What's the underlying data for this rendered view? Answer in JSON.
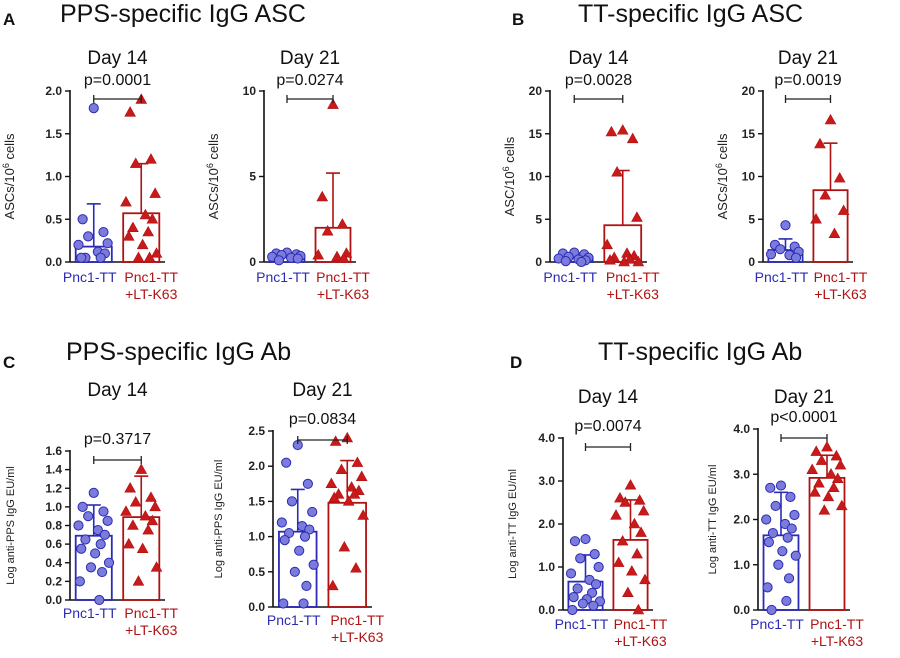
{
  "panels": [
    {
      "letter": "A",
      "title": "PPS-specific IgG ASC"
    },
    {
      "letter": "B",
      "title": "TT-specific IgG ASC"
    },
    {
      "letter": "C",
      "title": "PPS-specific IgG Ab"
    },
    {
      "letter": "D",
      "title": "TT-specific IgG Ab"
    }
  ],
  "group_labels": {
    "g1": "Pnc1-TT",
    "g2_line1": "Pnc1-TT",
    "g2_line2": "+LT-K63"
  },
  "colors": {
    "group1": "#2b2bb5",
    "group1_fill": "#7b7bdc",
    "group2": "#b01212",
    "group2_fill": "#c81a1a",
    "axis": "#111111"
  },
  "chart_data": [
    {
      "id": "A1",
      "type": "bar",
      "title": "Day 14",
      "ylabel": "ASCs/10^6 cells",
      "ylim": [
        0,
        2.0
      ],
      "yticks": [
        0.0,
        0.5,
        1.0,
        1.5,
        2.0
      ],
      "ytick_labels": [
        "0.0",
        "0.5",
        "1.0",
        "1.5",
        "2.0"
      ],
      "pvalue": "p=0.0001",
      "series": [
        {
          "name": "Pnc1-TT",
          "mean": 0.18,
          "sd": 0.5,
          "points": [
            1.8,
            0.5,
            0.35,
            0.3,
            0.22,
            0.2,
            0.12,
            0.1,
            0.05,
            0.05,
            0.05
          ]
        },
        {
          "name": "Pnc1-TT +LT-K63",
          "mean": 0.57,
          "sd": 0.58,
          "points": [
            1.9,
            1.75,
            1.2,
            1.15,
            0.8,
            0.7,
            0.55,
            0.5,
            0.4,
            0.35,
            0.3,
            0.2,
            0.1,
            0.05,
            0.05
          ]
        }
      ]
    },
    {
      "id": "A2",
      "type": "bar",
      "title": "Day 21",
      "ylabel": "ASCs/10^6 cells",
      "ylim": [
        0,
        10
      ],
      "yticks": [
        0,
        5,
        10
      ],
      "ytick_labels": [
        "0",
        "5",
        "10"
      ],
      "pvalue": "p=0.0274",
      "series": [
        {
          "name": "Pnc1-TT",
          "mean": 0.3,
          "sd": 0.15,
          "points": [
            0.55,
            0.5,
            0.45,
            0.4,
            0.35,
            0.3,
            0.25,
            0.2,
            0.1
          ]
        },
        {
          "name": "Pnc1-TT +LT-K63",
          "mean": 2.0,
          "sd": 3.2,
          "points": [
            9.2,
            3.8,
            2.2,
            1.8,
            0.5,
            0.4,
            0.3,
            0.2
          ]
        }
      ]
    },
    {
      "id": "B1",
      "type": "bar",
      "title": "Day 14",
      "ylabel": "ASC/10^6 cells",
      "ylim": [
        0,
        20
      ],
      "yticks": [
        0,
        5,
        10,
        15,
        20
      ],
      "ytick_labels": [
        "0",
        "5",
        "10",
        "15",
        "20"
      ],
      "pvalue": "p=0.0028",
      "series": [
        {
          "name": "Pnc1-TT",
          "mean": 0.5,
          "sd": 0.5,
          "points": [
            1.1,
            1.0,
            0.9,
            0.6,
            0.5,
            0.4,
            0.3,
            0.2,
            0.1,
            0.0
          ]
        },
        {
          "name": "Pnc1-TT +LT-K63",
          "mean": 4.3,
          "sd": 6.4,
          "points": [
            15.4,
            15.2,
            14.4,
            10.5,
            5.2,
            2.0,
            1.0,
            0.7,
            0.5,
            0.3,
            0.2,
            0.0,
            0.0
          ]
        }
      ]
    },
    {
      "id": "B2",
      "type": "bar",
      "title": "Day 21",
      "ylabel": "ASCs/10^6 cells",
      "ylim": [
        0,
        20
      ],
      "yticks": [
        0,
        5,
        10,
        15,
        20
      ],
      "ytick_labels": [
        "0",
        "5",
        "10",
        "15",
        "20"
      ],
      "pvalue": "p=0.0019",
      "series": [
        {
          "name": "Pnc1-TT",
          "mean": 1.4,
          "sd": 1.3,
          "points": [
            4.3,
            2.0,
            1.8,
            1.5,
            1.2,
            0.9,
            0.8,
            0.5
          ]
        },
        {
          "name": "Pnc1-TT +LT-K63",
          "mean": 8.4,
          "sd": 5.5,
          "points": [
            16.6,
            13.8,
            9.8,
            7.8,
            6.0,
            5.0,
            3.3
          ]
        }
      ]
    },
    {
      "id": "C1",
      "type": "bar",
      "title": "Day 14",
      "ylabel": "Log anti-PPS IgG EU/ml",
      "ylim": [
        0,
        1.6
      ],
      "yticks": [
        0.0,
        0.2,
        0.4,
        0.6,
        0.8,
        1.0,
        1.2,
        1.4,
        1.6
      ],
      "ytick_labels": [
        "0.0",
        "0.2",
        "0.4",
        "0.6",
        "0.8",
        "1.0",
        "1.2",
        "1.4",
        "1.6"
      ],
      "pvalue": "p=0.3717",
      "series": [
        {
          "name": "Pnc1-TT",
          "mean": 0.69,
          "sd": 0.33,
          "points": [
            1.15,
            1.0,
            0.95,
            0.9,
            0.85,
            0.8,
            0.75,
            0.7,
            0.65,
            0.6,
            0.55,
            0.5,
            0.4,
            0.35,
            0.3,
            0.2,
            0.0
          ]
        },
        {
          "name": "Pnc1-TT +LT-K63",
          "mean": 0.89,
          "sd": 0.44,
          "points": [
            1.4,
            1.2,
            1.1,
            1.05,
            1.0,
            0.95,
            0.9,
            0.85,
            0.8,
            0.75,
            0.6,
            0.55,
            0.35,
            0.2
          ]
        }
      ]
    },
    {
      "id": "C2",
      "type": "bar",
      "title": "Day 21",
      "ylabel": "Log anti-PPS IgG EU/ml",
      "ylim": [
        0,
        2.5
      ],
      "yticks": [
        0.0,
        0.5,
        1.0,
        1.5,
        2.0,
        2.5
      ],
      "ytick_labels": [
        "0.0",
        "0.5",
        "1.0",
        "1.5",
        "2.0",
        "2.5"
      ],
      "pvalue": "p=0.0834",
      "series": [
        {
          "name": "Pnc1-TT",
          "mean": 1.07,
          "sd": 0.6,
          "points": [
            2.3,
            2.05,
            1.75,
            1.5,
            1.35,
            1.2,
            1.15,
            1.1,
            1.05,
            1.0,
            0.95,
            0.8,
            0.6,
            0.5,
            0.3,
            0.05,
            0.05
          ]
        },
        {
          "name": "Pnc1-TT +LT-K63",
          "mean": 1.48,
          "sd": 0.6,
          "points": [
            2.4,
            2.35,
            2.05,
            1.95,
            1.85,
            1.75,
            1.7,
            1.65,
            1.6,
            1.6,
            1.55,
            1.5,
            1.3,
            0.85,
            0.55,
            0.3
          ]
        }
      ]
    },
    {
      "id": "D1",
      "type": "bar",
      "title": "Day 14",
      "ylabel": "Log anti-TT IgG EU/ml",
      "ylim": [
        0,
        4.0
      ],
      "yticks": [
        0.0,
        1.0,
        2.0,
        3.0,
        4.0
      ],
      "ytick_labels": [
        "0.0",
        "1.0",
        "2.0",
        "3.0",
        "4.0"
      ],
      "pvalue": "p=0.0074",
      "series": [
        {
          "name": "Pnc1-TT",
          "mean": 0.66,
          "sd": 0.62,
          "points": [
            1.65,
            1.6,
            1.3,
            1.2,
            1.0,
            0.85,
            0.7,
            0.6,
            0.5,
            0.4,
            0.3,
            0.25,
            0.2,
            0.15,
            0.1,
            0.0
          ]
        },
        {
          "name": "Pnc1-TT +LT-K63",
          "mean": 1.63,
          "sd": 0.93,
          "points": [
            2.9,
            2.6,
            2.55,
            2.5,
            2.3,
            2.2,
            2.0,
            1.8,
            1.6,
            1.3,
            1.1,
            0.9,
            0.7,
            0.4,
            0.0
          ]
        }
      ]
    },
    {
      "id": "D2",
      "type": "bar",
      "title": "Day 21",
      "ylabel": "Log anti-TT IgG EU/ml",
      "ylim": [
        0,
        4.0
      ],
      "yticks": [
        0.0,
        1.0,
        2.0,
        3.0,
        4.0
      ],
      "ytick_labels": [
        "0.0",
        "1.0",
        "2.0",
        "3.0",
        "4.0"
      ],
      "pvalue": "p<0.0001",
      "series": [
        {
          "name": "Pnc1-TT",
          "mean": 1.65,
          "sd": 0.95,
          "points": [
            2.75,
            2.7,
            2.5,
            2.3,
            2.1,
            2.0,
            1.9,
            1.8,
            1.7,
            1.6,
            1.5,
            1.3,
            1.2,
            1.0,
            0.7,
            0.5,
            0.2,
            0.0
          ]
        },
        {
          "name": "Pnc1-TT +LT-K63",
          "mean": 2.92,
          "sd": 0.5,
          "points": [
            3.6,
            3.5,
            3.4,
            3.3,
            3.2,
            3.1,
            3.0,
            2.9,
            2.8,
            2.7,
            2.6,
            2.5,
            2.3,
            2.2
          ]
        }
      ]
    }
  ]
}
